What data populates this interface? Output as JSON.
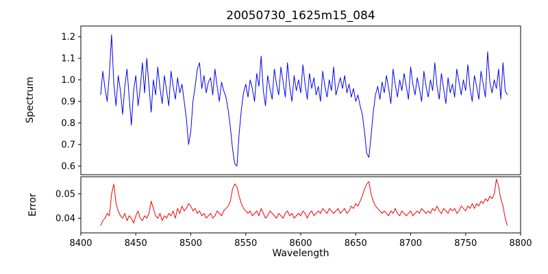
{
  "chart_data": {
    "type": "line",
    "title": "20050730_1625m15_084",
    "xlabel": "Wavelength",
    "xlim": [
      8400,
      8800
    ],
    "xticks": [
      "8400",
      "8450",
      "8500",
      "8550",
      "8600",
      "8650",
      "8700",
      "8750",
      "8800"
    ],
    "layout": {
      "background": "#ffffff",
      "grid": false,
      "legend": "none",
      "subplots": "two stacked panels sharing x-axis, spectrum panel taller than error panel"
    },
    "x": [
      8418,
      8420,
      8422,
      8424,
      8426,
      8428,
      8430,
      8432,
      8434,
      8436,
      8438,
      8440,
      8442,
      8444,
      8446,
      8448,
      8450,
      8452,
      8454,
      8456,
      8458,
      8460,
      8462,
      8464,
      8466,
      8468,
      8470,
      8472,
      8474,
      8476,
      8478,
      8480,
      8482,
      8484,
      8486,
      8488,
      8490,
      8492,
      8494,
      8496,
      8498,
      8500,
      8502,
      8504,
      8506,
      8508,
      8510,
      8512,
      8514,
      8516,
      8518,
      8520,
      8522,
      8524,
      8526,
      8528,
      8530,
      8532,
      8534,
      8536,
      8538,
      8540,
      8542,
      8544,
      8546,
      8548,
      8550,
      8552,
      8554,
      8556,
      8558,
      8560,
      8562,
      8564,
      8566,
      8568,
      8570,
      8572,
      8574,
      8576,
      8578,
      8580,
      8582,
      8584,
      8586,
      8588,
      8590,
      8592,
      8594,
      8596,
      8598,
      8600,
      8602,
      8604,
      8606,
      8608,
      8610,
      8612,
      8614,
      8616,
      8618,
      8620,
      8622,
      8624,
      8626,
      8628,
      8630,
      8632,
      8634,
      8636,
      8638,
      8640,
      8642,
      8644,
      8646,
      8648,
      8650,
      8652,
      8654,
      8656,
      8658,
      8660,
      8662,
      8664,
      8666,
      8668,
      8670,
      8672,
      8674,
      8676,
      8678,
      8680,
      8682,
      8684,
      8686,
      8688,
      8690,
      8692,
      8694,
      8696,
      8698,
      8700,
      8702,
      8704,
      8706,
      8708,
      8710,
      8712,
      8714,
      8716,
      8718,
      8720,
      8722,
      8724,
      8726,
      8728,
      8730,
      8732,
      8734,
      8736,
      8738,
      8740,
      8742,
      8744,
      8746,
      8748,
      8750,
      8752,
      8754,
      8756,
      8758,
      8760,
      8762,
      8764,
      8766,
      8768,
      8770,
      8772,
      8774,
      8776,
      8778,
      8780,
      8782,
      8784,
      8786,
      8788
    ],
    "series": [
      {
        "name": "Spectrum",
        "color": "#0000ee",
        "ylim": [
          0.56,
          1.25
        ],
        "yticks": [
          "0.6",
          "0.7",
          "0.8",
          "0.9",
          "1.0",
          "1.1",
          "1.2"
        ],
        "values": [
          0.93,
          1.04,
          0.96,
          0.9,
          1.03,
          1.21,
          0.98,
          0.88,
          1.02,
          0.95,
          0.84,
          0.97,
          1.05,
          0.92,
          0.79,
          0.95,
          1.02,
          0.88,
          0.96,
          1.08,
          0.94,
          1.1,
          0.97,
          0.85,
          1.0,
          0.93,
          1.06,
          0.96,
          0.89,
          1.02,
          0.95,
          0.88,
          1.04,
          0.97,
          0.91,
          1.01,
          0.94,
          0.98,
          0.9,
          0.82,
          0.7,
          0.76,
          0.9,
          0.97,
          1.05,
          1.08,
          0.96,
          1.02,
          0.94,
          0.99,
          1.01,
          0.93,
          1.05,
          0.97,
          0.9,
          0.99,
          0.95,
          0.92,
          0.86,
          0.78,
          0.68,
          0.61,
          0.6,
          0.75,
          0.86,
          0.94,
          0.98,
          0.92,
          1.0,
          0.96,
          0.9,
          1.03,
          0.97,
          1.11,
          0.95,
          0.88,
          1.02,
          0.96,
          0.91,
          1.05,
          0.98,
          0.93,
          1.06,
          0.99,
          0.92,
          1.08,
          0.97,
          0.9,
          1.02,
          0.95,
          1.0,
          0.94,
          1.07,
          0.98,
          0.91,
          1.03,
          0.96,
          1.01,
          0.93,
          0.97,
          0.9,
          1.04,
          0.97,
          0.92,
          1.0,
          0.95,
          1.06,
          0.93,
          0.97,
          1.01,
          0.96,
          1.02,
          0.94,
          0.98,
          0.92,
          0.96,
          0.9,
          0.93,
          0.88,
          0.84,
          0.76,
          0.66,
          0.64,
          0.74,
          0.85,
          0.93,
          0.97,
          0.91,
          0.99,
          0.94,
          1.02,
          0.96,
          0.89,
          1.05,
          0.98,
          0.92,
          1.0,
          0.95,
          1.03,
          0.97,
          0.91,
          1.06,
          0.98,
          0.93,
          1.01,
          0.96,
          0.9,
          1.04,
          0.97,
          0.92,
          1.0,
          0.95,
          1.08,
          0.97,
          0.91,
          1.03,
          0.96,
          0.89,
          1.01,
          0.94,
          0.98,
          0.92,
          1.05,
          0.99,
          0.93,
          1.0,
          0.95,
          1.07,
          0.96,
          0.9,
          1.02,
          0.97,
          0.91,
          1.04,
          0.98,
          0.92,
          1.13,
          0.99,
          0.94,
          1.0,
          0.96,
          1.05,
          0.91,
          1.08,
          0.95,
          0.93
        ]
      },
      {
        "name": "Error",
        "color": "#ee0000",
        "ylim": [
          0.034,
          0.057
        ],
        "yticks": [
          "0.04",
          "0.05"
        ],
        "values": [
          0.037,
          0.039,
          0.04,
          0.042,
          0.041,
          0.05,
          0.054,
          0.046,
          0.043,
          0.041,
          0.04,
          0.042,
          0.039,
          0.041,
          0.04,
          0.038,
          0.041,
          0.043,
          0.04,
          0.039,
          0.041,
          0.04,
          0.042,
          0.047,
          0.044,
          0.041,
          0.04,
          0.042,
          0.039,
          0.041,
          0.04,
          0.042,
          0.041,
          0.043,
          0.04,
          0.044,
          0.042,
          0.045,
          0.043,
          0.044,
          0.046,
          0.045,
          0.043,
          0.044,
          0.042,
          0.043,
          0.041,
          0.042,
          0.04,
          0.041,
          0.042,
          0.04,
          0.041,
          0.043,
          0.042,
          0.041,
          0.043,
          0.044,
          0.045,
          0.047,
          0.052,
          0.054,
          0.053,
          0.049,
          0.046,
          0.044,
          0.043,
          0.042,
          0.043,
          0.041,
          0.042,
          0.043,
          0.041,
          0.044,
          0.042,
          0.04,
          0.041,
          0.043,
          0.042,
          0.041,
          0.04,
          0.042,
          0.041,
          0.04,
          0.042,
          0.043,
          0.041,
          0.042,
          0.04,
          0.041,
          0.042,
          0.041,
          0.043,
          0.042,
          0.04,
          0.042,
          0.043,
          0.041,
          0.042,
          0.043,
          0.042,
          0.044,
          0.043,
          0.042,
          0.044,
          0.043,
          0.042,
          0.043,
          0.044,
          0.042,
          0.043,
          0.044,
          0.042,
          0.043,
          0.045,
          0.044,
          0.046,
          0.045,
          0.047,
          0.049,
          0.052,
          0.054,
          0.055,
          0.05,
          0.047,
          0.045,
          0.044,
          0.043,
          0.042,
          0.043,
          0.042,
          0.041,
          0.043,
          0.042,
          0.044,
          0.042,
          0.041,
          0.043,
          0.042,
          0.041,
          0.042,
          0.043,
          0.041,
          0.042,
          0.043,
          0.042,
          0.044,
          0.043,
          0.042,
          0.043,
          0.042,
          0.044,
          0.043,
          0.045,
          0.043,
          0.042,
          0.044,
          0.043,
          0.042,
          0.044,
          0.043,
          0.044,
          0.042,
          0.043,
          0.045,
          0.044,
          0.043,
          0.045,
          0.044,
          0.046,
          0.044,
          0.046,
          0.045,
          0.047,
          0.046,
          0.048,
          0.047,
          0.049,
          0.048,
          0.05,
          0.056,
          0.053,
          0.048,
          0.045,
          0.04,
          0.037
        ]
      }
    ]
  }
}
